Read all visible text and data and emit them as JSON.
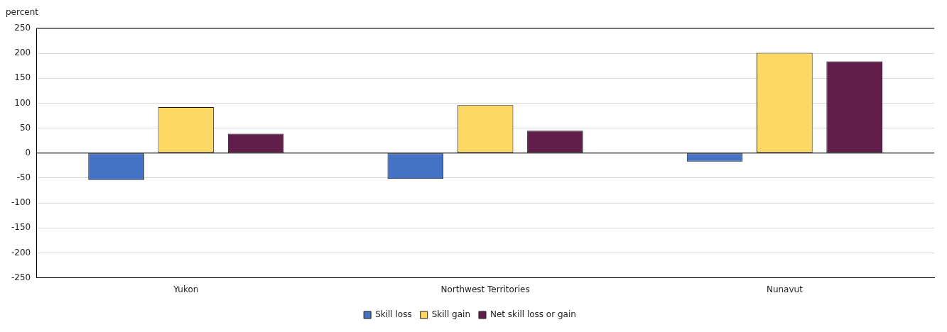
{
  "chart_data": {
    "type": "bar",
    "ylabel": "percent",
    "categories": [
      "Yukon",
      "Northwest Territories",
      "Nunavut"
    ],
    "series": [
      {
        "name": "Skill loss",
        "color": "#4472c4",
        "values": [
          -54,
          -52,
          -17
        ]
      },
      {
        "name": "Skill gain",
        "color": "#fdd865",
        "values": [
          92,
          96,
          201
        ]
      },
      {
        "name": "Net skill loss or gain",
        "color": "#621e4a",
        "values": [
          39,
          45,
          184
        ]
      }
    ],
    "ylim": [
      -250,
      250
    ],
    "yticks": [
      -250,
      -200,
      -150,
      -100,
      -50,
      0,
      50,
      100,
      150,
      200,
      250
    ],
    "grid": "y",
    "legend": "bottom"
  }
}
